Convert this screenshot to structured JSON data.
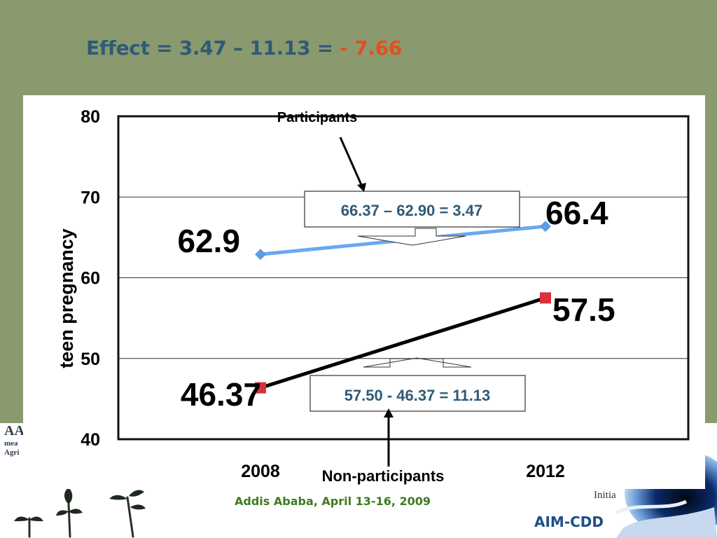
{
  "slide": {
    "title_prefix": "Effect = 3.47 – 11.13 = ",
    "title_effect": "- 7.66",
    "footer_date": "Addis Ababa, April 13-16, 2009",
    "footer_brand": "AIM-CDD",
    "footer_initiative": "Initiative",
    "logo_text": "AA",
    "logo_line1": "mea",
    "logo_line2": "Agri",
    "colors": {
      "background": "#8a9a6e",
      "title": "#2f5a78",
      "effect": "#e0501f",
      "footer_date": "#3e7a1e",
      "footer_brand": "#1f4f86"
    }
  },
  "chart_data": {
    "type": "line",
    "x": [
      "2008",
      "2012"
    ],
    "ylabel": "teen pregnancy",
    "ylim": [
      40,
      80
    ],
    "yticks": [
      "40",
      "50",
      "60",
      "70",
      "80"
    ],
    "grid": true,
    "series": [
      {
        "name": "Participants",
        "values": [
          62.9,
          66.37
        ],
        "labels": [
          "62.9",
          "66.4"
        ],
        "color": "#6aa8f0",
        "marker": "diamond",
        "marker_color": "#5b9be8"
      },
      {
        "name": "Non-participants",
        "values": [
          46.37,
          57.5
        ],
        "labels": [
          "46.37",
          "57.5"
        ],
        "color": "#000000",
        "marker": "square",
        "marker_color": "#d9303a"
      }
    ],
    "annotations": [
      {
        "text": "66.37 – 62.90 = 3.47",
        "text_color": "#2f5a78"
      },
      {
        "text": "57.50 - 46.37 = 11.13",
        "text_color": "#2f5a78"
      }
    ]
  }
}
